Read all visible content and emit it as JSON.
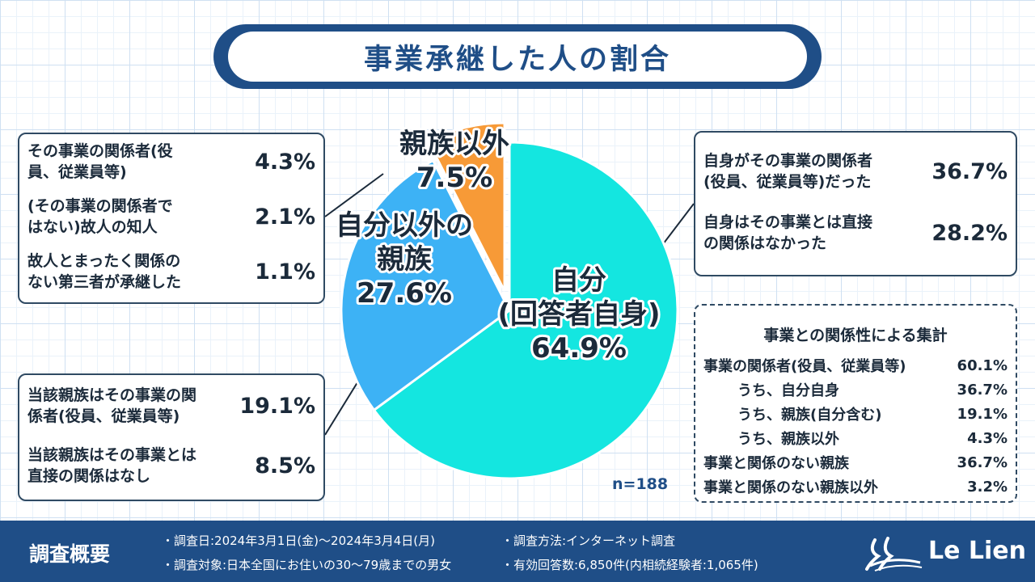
{
  "title": "事業承継した人の割合",
  "chart_data": {
    "type": "pie",
    "n_label": "n=188",
    "slices": [
      {
        "name": "自分",
        "name2": "(回答者自身)",
        "label": "64.9%",
        "value": 64.9,
        "color": "#14e6e0"
      },
      {
        "name": "自分以外の",
        "name2": "親族",
        "label": "27.6%",
        "value": 27.6,
        "color": "#3db2f5"
      },
      {
        "name": "親族以外",
        "name2": "",
        "label": "7.5%",
        "value": 7.5,
        "color": "#f79a37"
      }
    ]
  },
  "boxes": {
    "top_left": [
      {
        "l1": "その事業の関係者(役",
        "l2": "員、従業員等)",
        "value": "4.3%"
      },
      {
        "l1": "(その事業の関係者で",
        "l2": "はない)故人の知人",
        "value": "2.1%"
      },
      {
        "l1": "故人とまったく関係の",
        "l2": "ない第三者が承継した",
        "value": "1.1%"
      }
    ],
    "bottom_left": [
      {
        "l1": "当該親族はその事業の関",
        "l2": "係者(役員、従業員等)",
        "value": "19.1%"
      },
      {
        "l1": "当該親族はその事業とは",
        "l2": "直接の関係はなし",
        "value": "8.5%"
      }
    ],
    "top_right": [
      {
        "l1": "自身がその事業の関係者",
        "l2": "(役員、従業員等)だった",
        "value": "36.7%"
      },
      {
        "l1": "自身はその事業とは直接",
        "l2": "の関係はなかった",
        "value": "28.2%"
      }
    ]
  },
  "aggregate": {
    "title": "事業との関係性による集計",
    "rows": [
      {
        "label": "事業の関係者(役員、従業員等)",
        "value": "60.1%",
        "indent": false
      },
      {
        "label": "うち、自分自身",
        "value": "36.7%",
        "indent": true
      },
      {
        "label": "うち、親族(自分含む)",
        "value": "19.1%",
        "indent": true
      },
      {
        "label": "うち、親族以外",
        "value": "4.3%",
        "indent": true
      },
      {
        "label": "事業と関係のない親族",
        "value": "36.7%",
        "indent": false
      },
      {
        "label": "事業と関係のない親族以外",
        "value": "3.2%",
        "indent": false
      }
    ]
  },
  "footer": {
    "heading": "調査概要",
    "date": "・調査日:2024年3月1日(金)〜2024年3月4日(月)",
    "target": "・調査対象:日本全国にお住いの30〜79歳までの男女",
    "method": "・調査方法:インターネット調査",
    "responses": "・有効回答数:6,850件(内相続経験者:1,065件)",
    "brand": "Le Lien"
  }
}
